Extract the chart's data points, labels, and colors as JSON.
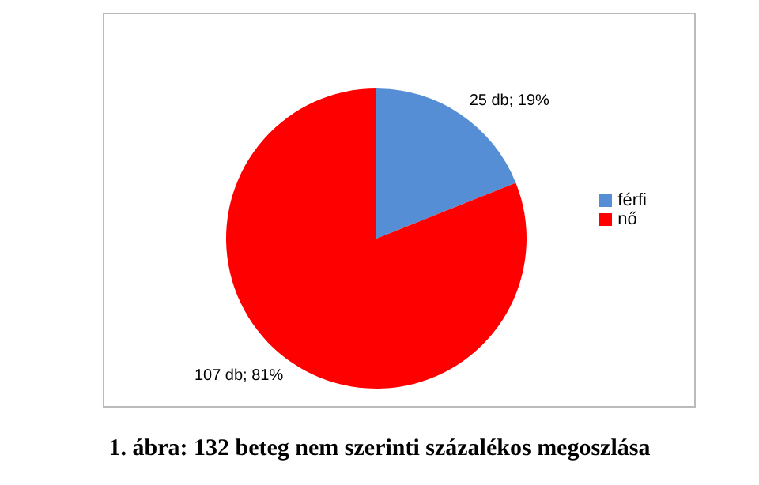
{
  "chart_data": {
    "type": "pie",
    "title": "1. ábra: 132 beteg nem szerinti százalékos megoszlása",
    "categories": [
      "férfi",
      "nő"
    ],
    "values": [
      25,
      107
    ],
    "colors": [
      "#558ed5",
      "#ff0000"
    ],
    "value_labels": [
      "25 db; 19%",
      "107 db; 81%"
    ],
    "legend": "right"
  }
}
